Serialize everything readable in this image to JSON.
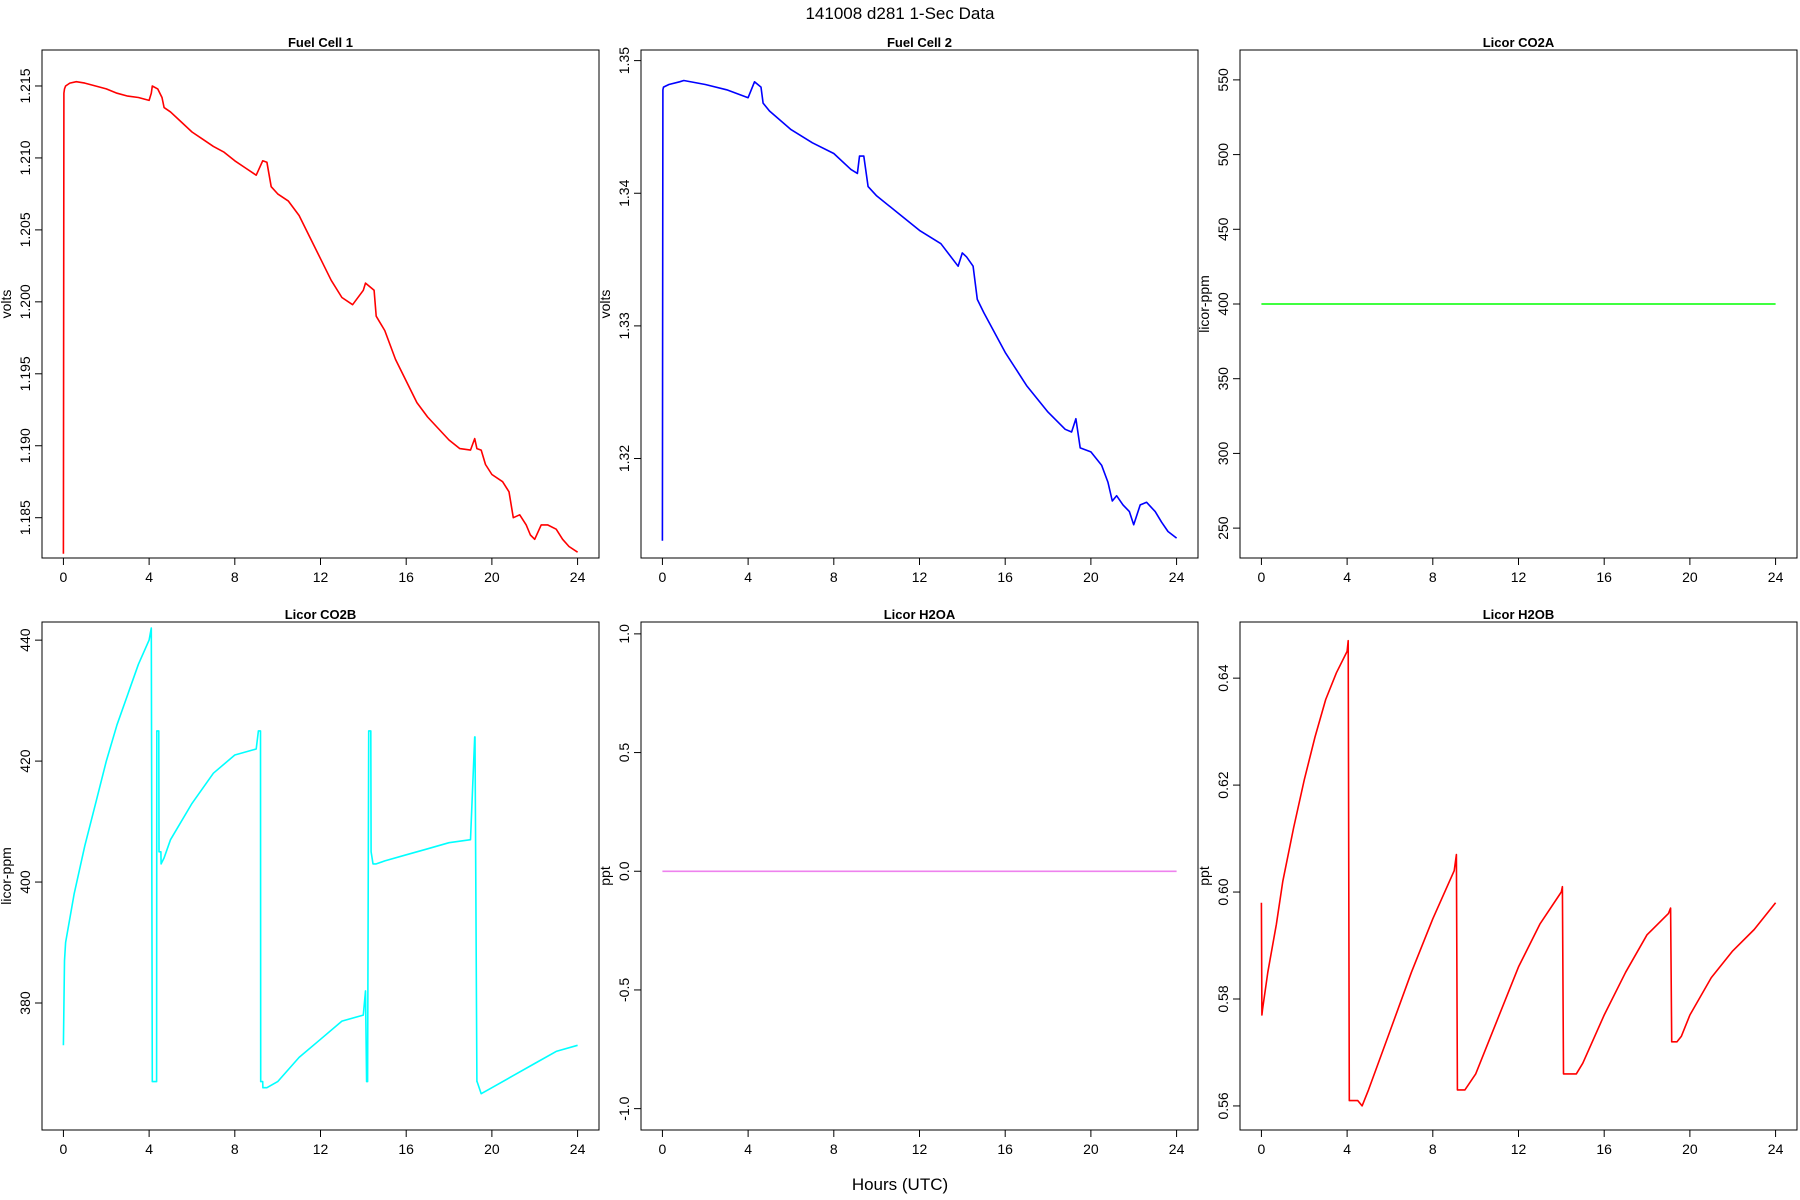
{
  "figure": {
    "title": "141008   d281   1-Sec Data",
    "xlabel": "Hours (UTC)"
  },
  "chart_data": [
    {
      "type": "line",
      "title": "Fuel Cell 1",
      "ylabel": "volts",
      "color": "#ff0000",
      "xlim": [
        -1,
        25
      ],
      "ylim": [
        1.1822,
        1.2175
      ],
      "xticks": [
        0,
        4,
        8,
        12,
        16,
        20,
        24
      ],
      "yticks": [
        1.185,
        1.19,
        1.195,
        1.2,
        1.205,
        1.21,
        1.215
      ],
      "ytick_labels": [
        "1.185",
        "1.190",
        "1.195",
        "1.200",
        "1.205",
        "1.210",
        "1.215"
      ],
      "x": [
        0,
        0.02,
        0.05,
        0.1,
        0.3,
        0.6,
        1.0,
        1.5,
        2.0,
        2.5,
        3.0,
        3.5,
        4.0,
        4.1,
        4.15,
        4.4,
        4.6,
        4.7,
        5.0,
        5.5,
        6.0,
        6.5,
        7.0,
        7.5,
        8.0,
        8.5,
        9.0,
        9.3,
        9.5,
        9.7,
        10.0,
        10.5,
        11.0,
        11.5,
        12.0,
        12.5,
        13.0,
        13.5,
        14.0,
        14.1,
        14.5,
        14.6,
        15.0,
        15.5,
        16.0,
        16.5,
        17.0,
        17.5,
        18.0,
        18.5,
        19.0,
        19.2,
        19.3,
        19.5,
        19.7,
        20.0,
        20.5,
        20.8,
        21.0,
        21.3,
        21.6,
        21.8,
        22.0,
        22.3,
        22.6,
        23.0,
        23.3,
        23.6,
        24.0
      ],
      "y": [
        1.1825,
        1.2145,
        1.2148,
        1.215,
        1.2152,
        1.2153,
        1.2152,
        1.215,
        1.2148,
        1.2145,
        1.2143,
        1.2142,
        1.214,
        1.2145,
        1.215,
        1.2148,
        1.2142,
        1.2135,
        1.2132,
        1.2125,
        1.2118,
        1.2113,
        1.2108,
        1.2104,
        1.2098,
        1.2093,
        1.2088,
        1.2098,
        1.2097,
        1.208,
        1.2075,
        1.207,
        1.206,
        1.2045,
        1.203,
        1.2015,
        1.2003,
        1.1998,
        1.2008,
        1.2013,
        1.2008,
        1.199,
        1.198,
        1.196,
        1.1945,
        1.193,
        1.192,
        1.1912,
        1.1904,
        1.1898,
        1.1897,
        1.1905,
        1.1898,
        1.1897,
        1.1887,
        1.188,
        1.1875,
        1.1868,
        1.185,
        1.1852,
        1.1845,
        1.1838,
        1.1835,
        1.1845,
        1.1845,
        1.1842,
        1.1835,
        1.183,
        1.1826
      ]
    },
    {
      "type": "line",
      "title": "Fuel Cell 2",
      "ylabel": "volts",
      "color": "#0000ff",
      "xlim": [
        -1,
        25
      ],
      "ylim": [
        1.3125,
        1.3508
      ],
      "xticks": [
        0,
        4,
        8,
        12,
        16,
        20,
        24
      ],
      "yticks": [
        1.32,
        1.33,
        1.34,
        1.35
      ],
      "ytick_labels": [
        "1.32",
        "1.33",
        "1.34",
        "1.35"
      ],
      "x": [
        0,
        0.02,
        0.05,
        0.3,
        0.8,
        1.0,
        2.0,
        3.0,
        4.0,
        4.2,
        4.3,
        4.6,
        4.7,
        5.0,
        6.0,
        7.0,
        8.0,
        8.8,
        9.1,
        9.2,
        9.4,
        9.6,
        10.0,
        11.0,
        12.0,
        13.0,
        13.8,
        14.0,
        14.2,
        14.5,
        14.7,
        15.0,
        16.0,
        17.0,
        18.0,
        18.8,
        19.1,
        19.3,
        19.5,
        20.0,
        20.5,
        20.8,
        21.0,
        21.2,
        21.5,
        21.8,
        22.0,
        22.3,
        22.6,
        23.0,
        23.3,
        23.6,
        24.0
      ],
      "y": [
        1.3138,
        1.3478,
        1.348,
        1.3482,
        1.3484,
        1.3485,
        1.3482,
        1.3478,
        1.3472,
        1.348,
        1.3484,
        1.348,
        1.3468,
        1.3462,
        1.3448,
        1.3438,
        1.343,
        1.3418,
        1.3415,
        1.3428,
        1.3428,
        1.3405,
        1.3398,
        1.3385,
        1.3372,
        1.3362,
        1.3345,
        1.3355,
        1.3352,
        1.3345,
        1.332,
        1.331,
        1.328,
        1.3255,
        1.3235,
        1.3222,
        1.322,
        1.323,
        1.3208,
        1.3205,
        1.3195,
        1.3182,
        1.3168,
        1.3172,
        1.3165,
        1.316,
        1.315,
        1.3165,
        1.3167,
        1.316,
        1.3152,
        1.3145,
        1.314
      ]
    },
    {
      "type": "line",
      "title": "Licor CO2A",
      "ylabel": "licor-ppm",
      "color": "#00ff00",
      "xlim": [
        -1,
        25
      ],
      "ylim": [
        230,
        570
      ],
      "xticks": [
        0,
        4,
        8,
        12,
        16,
        20,
        24
      ],
      "yticks": [
        250,
        300,
        350,
        400,
        450,
        500,
        550
      ],
      "ytick_labels": [
        "250",
        "300",
        "350",
        "400",
        "450",
        "500",
        "550"
      ],
      "x": [
        0,
        24
      ],
      "y": [
        400,
        400
      ]
    },
    {
      "type": "line",
      "title": "Licor CO2B",
      "ylabel": "licor-ppm",
      "color": "#00ffff",
      "xlim": [
        -1,
        25
      ],
      "ylim": [
        359,
        443
      ],
      "xticks": [
        0,
        4,
        8,
        12,
        16,
        20,
        24
      ],
      "yticks": [
        380,
        400,
        420,
        440
      ],
      "ytick_labels": [
        "380",
        "400",
        "420",
        "440"
      ],
      "x": [
        0,
        0.05,
        0.1,
        0.5,
        1.0,
        1.5,
        2.0,
        2.5,
        3.0,
        3.5,
        4.0,
        4.1,
        4.15,
        4.16,
        4.35,
        4.36,
        4.45,
        4.46,
        4.55,
        4.56,
        4.7,
        5.0,
        6.0,
        7.0,
        8.0,
        9.0,
        9.1,
        9.2,
        9.21,
        9.3,
        9.31,
        9.5,
        10.0,
        11.0,
        12.0,
        13.0,
        14.0,
        14.1,
        14.15,
        14.2,
        14.25,
        14.35,
        14.36,
        14.45,
        14.6,
        15.0,
        16.0,
        17.0,
        18.0,
        19.0,
        19.2,
        19.21,
        19.3,
        19.31,
        19.5,
        20.0,
        21.0,
        22.0,
        23.0,
        24.0
      ],
      "y": [
        373,
        387,
        390,
        398,
        406,
        413,
        420,
        426,
        431,
        436,
        440,
        442,
        367,
        367,
        367,
        425,
        425,
        405,
        405,
        403,
        404,
        407,
        413,
        418,
        421,
        422,
        425,
        425,
        367,
        367,
        366,
        366,
        367,
        371,
        374,
        377,
        378,
        382,
        367,
        367,
        425,
        425,
        405,
        403,
        403,
        403.5,
        404.5,
        405.5,
        406.5,
        407,
        424,
        424,
        367,
        367,
        365,
        366,
        368,
        370,
        372,
        373
      ]
    },
    {
      "type": "line",
      "title": "Licor H2OA",
      "ylabel": "ppt",
      "color": "#ee82ee",
      "xlim": [
        -1,
        25
      ],
      "ylim": [
        -1.09,
        1.05
      ],
      "xticks": [
        0,
        4,
        8,
        12,
        16,
        20,
        24
      ],
      "yticks": [
        -1.0,
        -0.5,
        0.0,
        0.5,
        1.0
      ],
      "ytick_labels": [
        "-1.0",
        "-0.5",
        "0.0",
        "0.5",
        "1.0"
      ],
      "x": [
        0,
        24
      ],
      "y": [
        0,
        0
      ]
    },
    {
      "type": "line",
      "title": "Licor H2OB",
      "ylabel": "ppt",
      "color": "#ff0000",
      "xlim": [
        -1,
        25
      ],
      "ylim": [
        0.5555,
        0.6505
      ],
      "xticks": [
        0,
        4,
        8,
        12,
        16,
        20,
        24
      ],
      "yticks": [
        0.56,
        0.58,
        0.6,
        0.62,
        0.64
      ],
      "ytick_labels": [
        "0.56",
        "0.58",
        "0.60",
        "0.62",
        "0.64"
      ],
      "x": [
        0,
        0.02,
        0.05,
        0.3,
        0.7,
        1.0,
        1.5,
        2.0,
        2.5,
        3.0,
        3.5,
        4.0,
        4.05,
        4.1,
        4.5,
        4.7,
        5.0,
        6.0,
        7.0,
        8.0,
        9.0,
        9.1,
        9.15,
        9.5,
        10.0,
        11.0,
        12.0,
        13.0,
        14.0,
        14.05,
        14.1,
        14.5,
        14.7,
        15.0,
        16.0,
        17.0,
        18.0,
        19.0,
        19.1,
        19.15,
        19.4,
        19.6,
        20.0,
        21.0,
        22.0,
        23.0,
        24.0
      ],
      "y": [
        0.598,
        0.577,
        0.578,
        0.585,
        0.594,
        0.602,
        0.612,
        0.621,
        0.629,
        0.636,
        0.641,
        0.645,
        0.647,
        0.561,
        0.561,
        0.56,
        0.563,
        0.574,
        0.585,
        0.595,
        0.604,
        0.607,
        0.563,
        0.563,
        0.566,
        0.576,
        0.586,
        0.594,
        0.6,
        0.601,
        0.566,
        0.566,
        0.566,
        0.568,
        0.577,
        0.585,
        0.592,
        0.596,
        0.597,
        0.572,
        0.572,
        0.573,
        0.577,
        0.584,
        0.589,
        0.593,
        0.598
      ]
    }
  ]
}
